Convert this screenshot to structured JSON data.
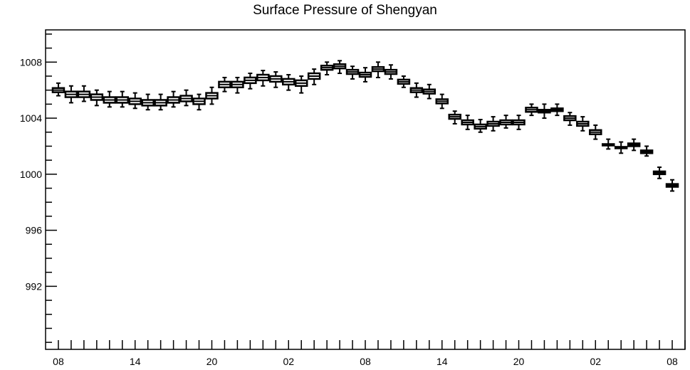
{
  "chart_data": {
    "type": "boxplot",
    "title": "Surface Pressure of Shengyan",
    "xlabel": "",
    "ylabel": "",
    "ylim": [
      987.5,
      1010.3
    ],
    "yticks": [
      992,
      996,
      1000,
      1004,
      1008
    ],
    "ytick_labels": [
      "992",
      "996",
      "1000",
      "1004",
      "1008"
    ],
    "xlim": [
      -1,
      49
    ],
    "xticks": [
      0,
      6,
      12,
      18,
      24,
      30,
      36,
      42,
      48
    ],
    "xtick_labels": [
      "08",
      "14",
      "20",
      "02",
      "08",
      "14",
      "20",
      "02",
      "08"
    ],
    "grid": false,
    "series": [
      {
        "x": [
          0,
          1,
          2,
          3,
          4,
          5,
          6,
          7,
          8,
          9,
          10,
          11,
          12,
          13,
          14,
          15,
          16,
          17,
          18,
          19,
          20,
          21,
          22,
          23,
          24,
          25,
          26,
          27,
          28,
          29,
          30,
          31,
          32,
          33,
          34,
          35,
          36,
          37,
          38,
          39,
          40,
          41,
          42,
          43,
          44,
          45,
          46,
          47,
          48
        ],
        "median": [
          1006.0,
          1005.7,
          1005.7,
          1005.5,
          1005.3,
          1005.3,
          1005.2,
          1005.1,
          1005.1,
          1005.3,
          1005.4,
          1005.2,
          1005.6,
          1006.4,
          1006.4,
          1006.7,
          1006.9,
          1006.8,
          1006.6,
          1006.5,
          1007.0,
          1007.6,
          1007.7,
          1007.3,
          1007.1,
          1007.5,
          1007.3,
          1006.6,
          1006.0,
          1005.9,
          1005.2,
          1004.1,
          1003.7,
          1003.4,
          1003.6,
          1003.7,
          1003.7,
          1004.6,
          1004.5,
          1004.6,
          1004.0,
          1003.6,
          1003.0,
          1002.1,
          1001.9,
          1002.1,
          1001.6,
          1000.1,
          999.2
        ],
        "q1": [
          1005.85,
          1005.5,
          1005.5,
          1005.3,
          1005.1,
          1005.1,
          1005.0,
          1004.9,
          1004.9,
          1005.1,
          1005.2,
          1005.0,
          1005.4,
          1006.2,
          1006.2,
          1006.5,
          1006.7,
          1006.6,
          1006.4,
          1006.3,
          1006.8,
          1007.45,
          1007.55,
          1007.15,
          1006.95,
          1007.35,
          1007.15,
          1006.45,
          1005.85,
          1005.75,
          1005.05,
          1003.95,
          1003.55,
          1003.25,
          1003.45,
          1003.55,
          1003.55,
          1004.45,
          1004.4,
          1004.5,
          1003.85,
          1003.45,
          1002.85,
          1002.05,
          1001.85,
          1002.0,
          1001.5,
          1000.0,
          999.1
        ],
        "q3": [
          1006.15,
          1005.9,
          1005.9,
          1005.7,
          1005.5,
          1005.5,
          1005.4,
          1005.3,
          1005.3,
          1005.5,
          1005.6,
          1005.4,
          1005.8,
          1006.6,
          1006.6,
          1006.9,
          1007.1,
          1007.0,
          1006.8,
          1006.7,
          1007.2,
          1007.75,
          1007.85,
          1007.45,
          1007.25,
          1007.65,
          1007.45,
          1006.75,
          1006.15,
          1006.05,
          1005.35,
          1004.25,
          1003.85,
          1003.55,
          1003.75,
          1003.85,
          1003.85,
          1004.75,
          1004.6,
          1004.7,
          1004.15,
          1003.75,
          1003.15,
          1002.15,
          1001.95,
          1002.2,
          1001.7,
          1000.2,
          999.3
        ],
        "whisker_low": [
          1005.6,
          1005.1,
          1005.2,
          1004.9,
          1004.8,
          1004.8,
          1004.7,
          1004.6,
          1004.6,
          1004.8,
          1004.9,
          1004.6,
          1005.0,
          1005.9,
          1005.8,
          1006.1,
          1006.3,
          1006.2,
          1006.0,
          1005.8,
          1006.4,
          1007.1,
          1007.2,
          1006.8,
          1006.6,
          1006.9,
          1006.8,
          1006.2,
          1005.5,
          1005.4,
          1004.7,
          1003.6,
          1003.2,
          1003.0,
          1003.1,
          1003.3,
          1003.2,
          1004.2,
          1004.0,
          1004.2,
          1003.5,
          1003.1,
          1002.5,
          1001.8,
          1001.5,
          1001.7,
          1001.3,
          999.7,
          998.8
        ],
        "whisker_high": [
          1006.5,
          1006.3,
          1006.3,
          1006.0,
          1005.9,
          1005.9,
          1005.8,
          1005.7,
          1005.7,
          1005.9,
          1006.0,
          1005.7,
          1006.2,
          1006.9,
          1006.9,
          1007.2,
          1007.4,
          1007.3,
          1007.1,
          1007.0,
          1007.5,
          1008.0,
          1008.1,
          1007.7,
          1007.6,
          1008.0,
          1007.8,
          1007.0,
          1006.5,
          1006.4,
          1005.7,
          1004.5,
          1004.2,
          1003.9,
          1004.1,
          1004.2,
          1004.2,
          1005.0,
          1005.0,
          1005.0,
          1004.4,
          1004.1,
          1003.5,
          1002.5,
          1002.3,
          1002.5,
          1002.0,
          1000.5,
          999.6
        ]
      }
    ]
  }
}
